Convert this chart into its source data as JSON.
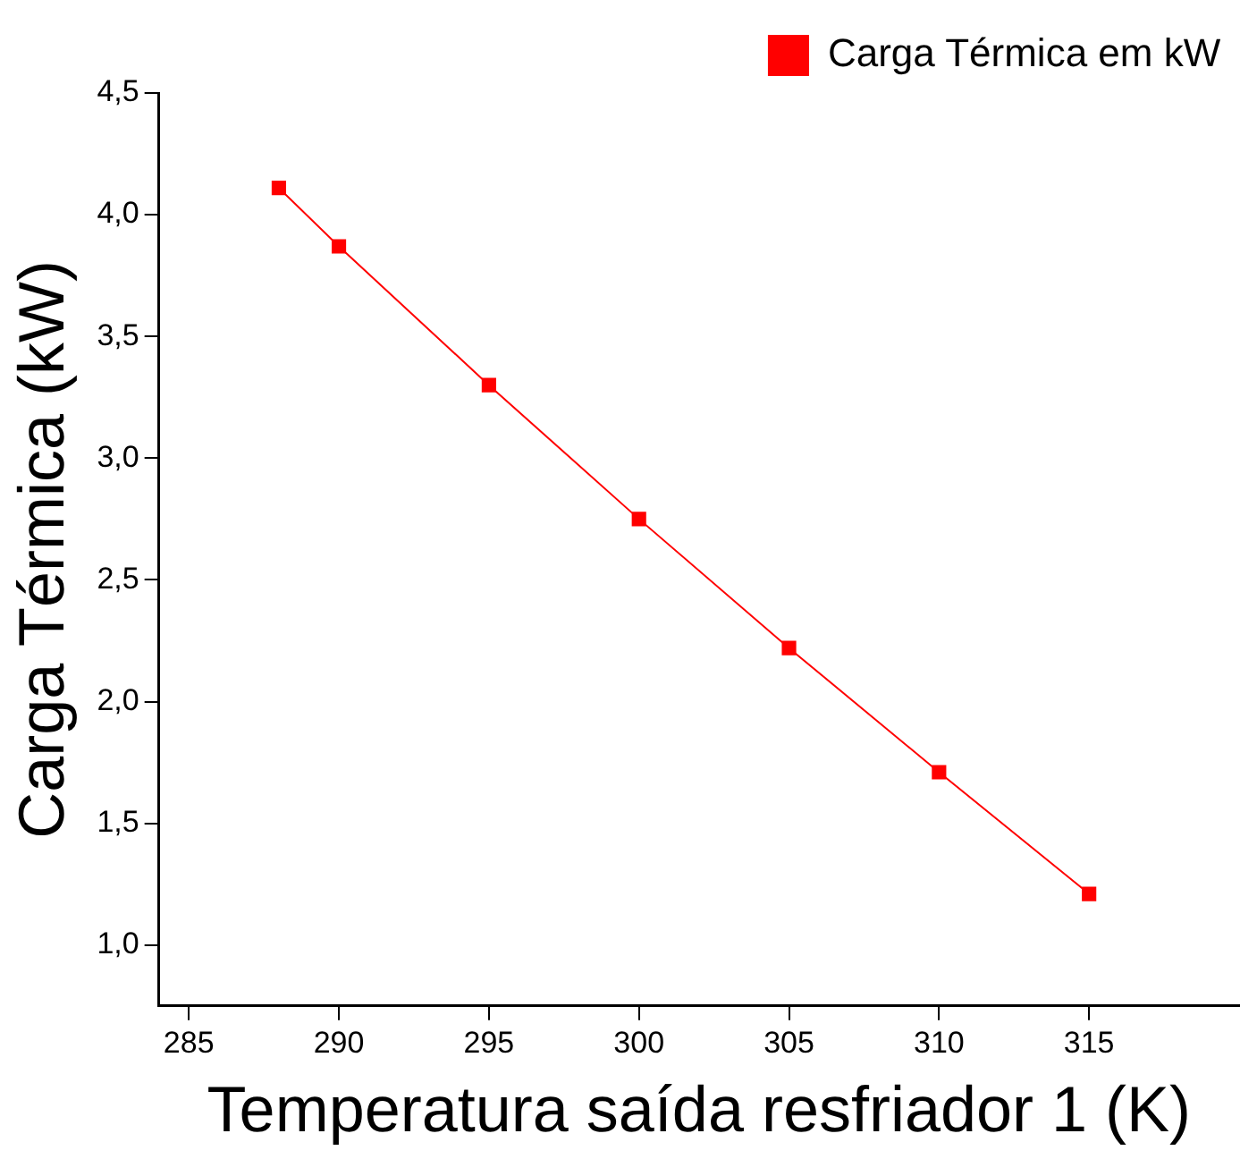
{
  "chart_data": {
    "type": "line",
    "xlabel": "Temperatura saída resfriador 1 (K)",
    "ylabel": "Carga Térmica (kW)",
    "x": [
      288,
      290,
      295,
      300,
      305,
      310,
      315
    ],
    "series": [
      {
        "name": "Carga Térmica em kW",
        "color": "#ff0000",
        "values": [
          4.11,
          3.87,
          3.3,
          2.75,
          2.22,
          1.71,
          1.21
        ]
      }
    ],
    "xlim": [
      284,
      320
    ],
    "xticks": [
      285,
      290,
      295,
      300,
      305,
      310,
      315
    ],
    "ylim": [
      0.75,
      4.5
    ],
    "yticks": [
      {
        "value": 1,
        "label": "1,0"
      },
      {
        "value": 1.5,
        "label": "1,5"
      },
      {
        "value": 2,
        "label": "2,0"
      },
      {
        "value": 2.5,
        "label": "2,5"
      },
      {
        "value": 3,
        "label": "3,0"
      },
      {
        "value": 3.5,
        "label": "3,5"
      },
      {
        "value": 4,
        "label": "4,0"
      },
      {
        "value": 4.5,
        "label": "4,5"
      }
    ],
    "grid": false,
    "legend": "top right",
    "marker": "square",
    "line_style": "solid"
  }
}
